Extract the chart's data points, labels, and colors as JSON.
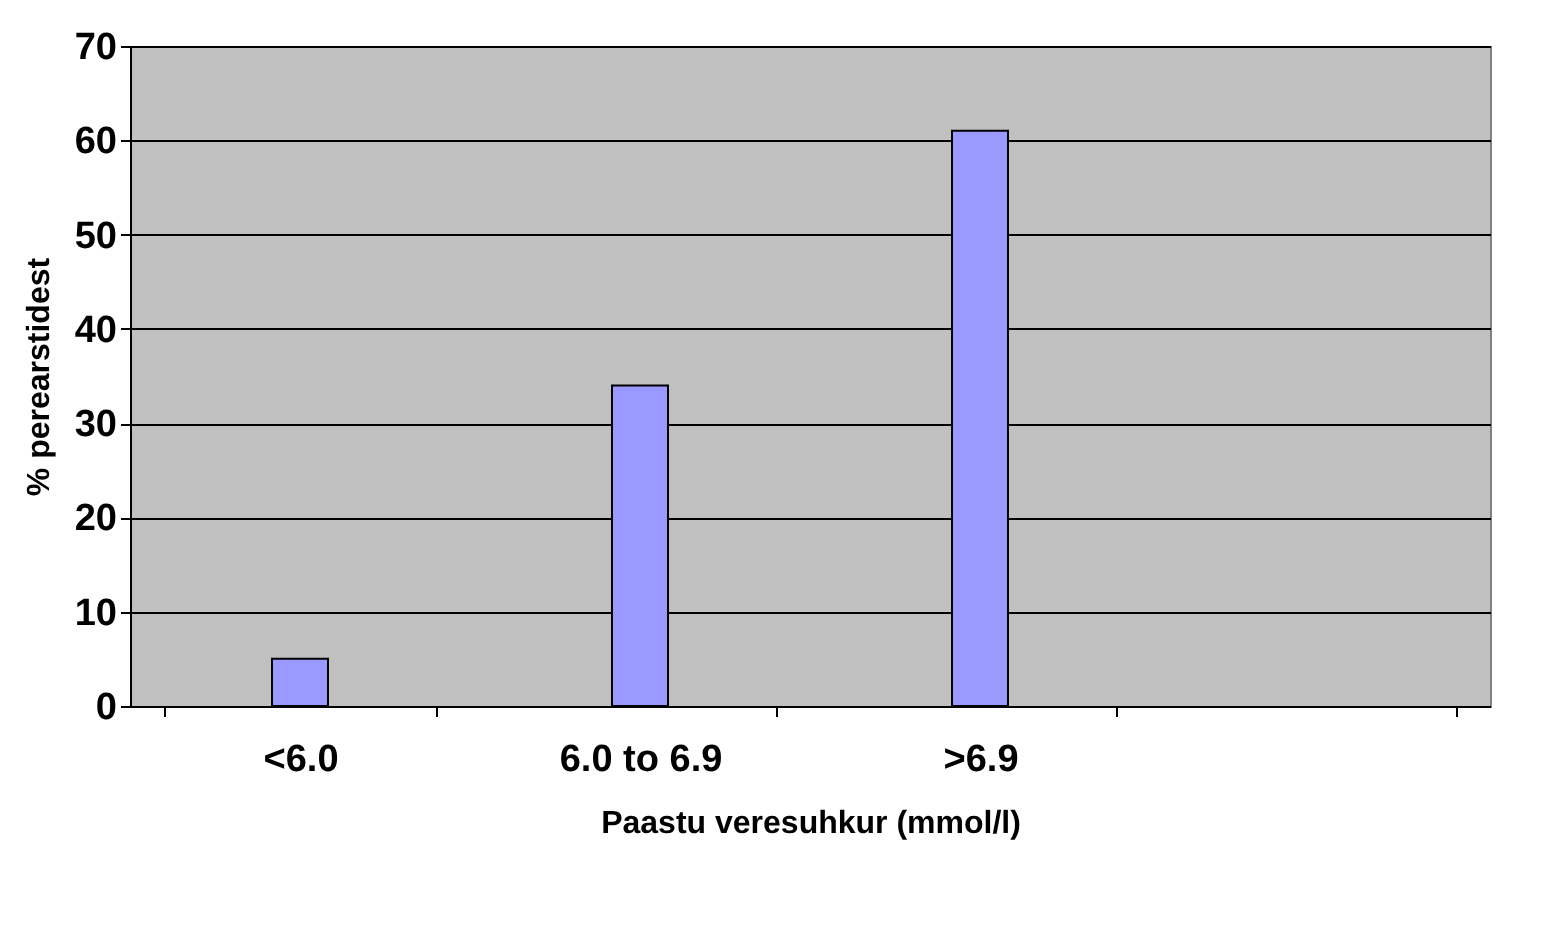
{
  "chart_data": {
    "type": "bar",
    "xlabel": "Paastu veresuhkur (mmol/l)",
    "ylabel": "% perearstidest",
    "categories": [
      "<6.0",
      "6.0 to 6.9",
      ">6.9",
      null
    ],
    "values": [
      5,
      34,
      61,
      null
    ],
    "color": "#9999ff",
    "ylim": [
      0,
      70
    ],
    "yticks": [
      0,
      10,
      20,
      30,
      40,
      50,
      60,
      70
    ],
    "grid": "y"
  }
}
